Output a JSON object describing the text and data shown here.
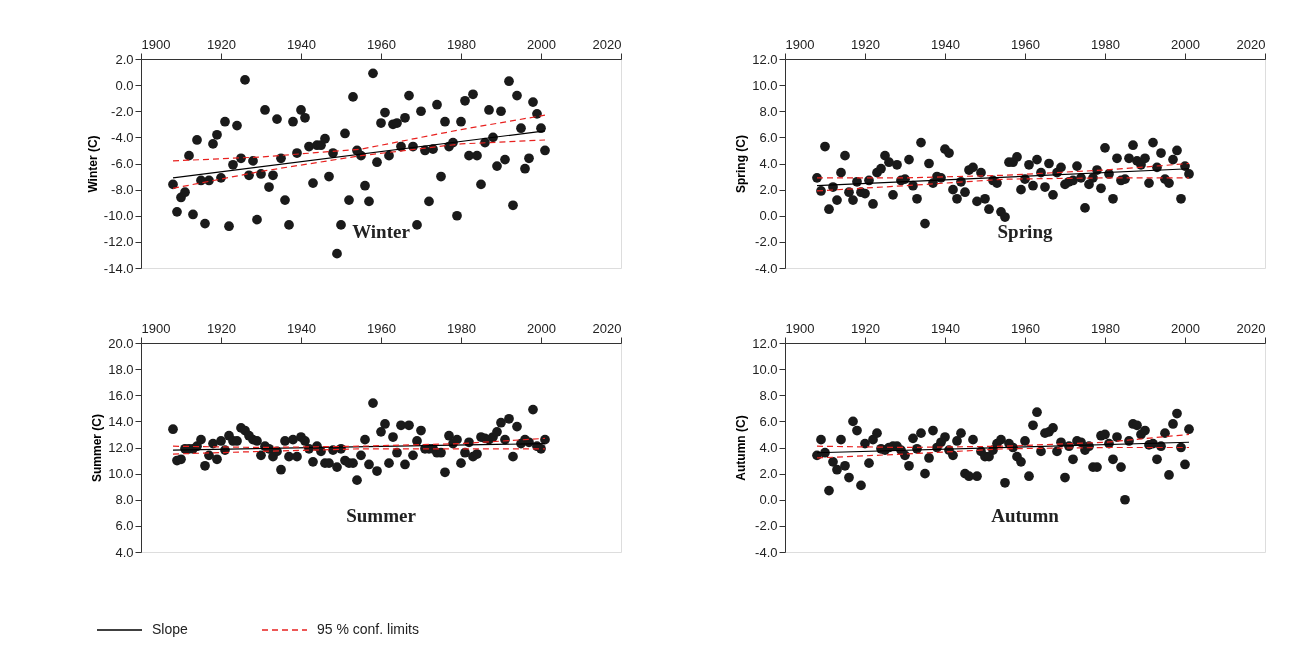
{
  "chart_data": [
    {
      "type": "scatter",
      "title": "Winter",
      "ylabel": "Winter (C)",
      "legend": "bottom",
      "xlim": [
        1900,
        2020
      ],
      "xticks": [
        1900,
        1920,
        1940,
        1960,
        1980,
        2000,
        2020
      ],
      "ylim": [
        -14,
        2
      ],
      "yticks": [
        {
          "value": -14,
          "label": "-14.0"
        },
        {
          "value": -12,
          "label": "-12.0"
        },
        {
          "value": -10,
          "label": "-10.0"
        },
        {
          "value": -8,
          "label": "-8.0"
        },
        {
          "value": -6,
          "label": "-6.0"
        },
        {
          "value": -4,
          "label": "-4.0"
        },
        {
          "value": -2,
          "label": "-2.0"
        },
        {
          "value": 0,
          "label": "0.0"
        },
        {
          "value": 2,
          "label": "2.0"
        }
      ],
      "x": [
        1908,
        1909,
        1910,
        1911,
        1912,
        1913,
        1914,
        1915,
        1916,
        1917,
        1918,
        1919,
        1920,
        1921,
        1922,
        1923,
        1924,
        1925,
        1926,
        1927,
        1928,
        1929,
        1930,
        1931,
        1932,
        1933,
        1934,
        1935,
        1936,
        1937,
        1938,
        1939,
        1940,
        1941,
        1942,
        1943,
        1944,
        1945,
        1946,
        1947,
        1948,
        1949,
        1950,
        1951,
        1952,
        1953,
        1954,
        1955,
        1956,
        1957,
        1958,
        1959,
        1960,
        1961,
        1962,
        1963,
        1964,
        1965,
        1966,
        1967,
        1968,
        1969,
        1970,
        1971,
        1972,
        1973,
        1974,
        1975,
        1976,
        1977,
        1978,
        1979,
        1980,
        1981,
        1982,
        1983,
        1984,
        1985,
        1986,
        1987,
        1988,
        1989,
        1990,
        1991,
        1992,
        1993,
        1994,
        1995,
        1996,
        1997,
        1998,
        1999,
        2000,
        2001
      ],
      "series": [
        {
          "type": "scatter",
          "marker": "circle",
          "color": "#1a1a1a",
          "values": [
            -7.6,
            -9.7,
            -8.6,
            -8.2,
            -5.4,
            -9.9,
            -4.2,
            -7.3,
            -10.6,
            -7.3,
            -4.5,
            -3.8,
            -7.1,
            -2.8,
            -10.8,
            -6.1,
            -3.1,
            -5.6,
            0.4,
            -6.9,
            -5.8,
            -10.3,
            -6.8,
            -1.9,
            -7.8,
            -6.9,
            -2.6,
            -5.6,
            -8.8,
            -10.7,
            -2.8,
            -5.2,
            -1.9,
            -2.5,
            -4.7,
            -7.5,
            -4.6,
            -4.6,
            -4.1,
            -7.0,
            -5.2,
            -12.9,
            -10.7,
            -3.7,
            -8.8,
            -0.9,
            -5.0,
            -5.4,
            -7.7,
            -8.9,
            0.9,
            -5.9,
            -2.9,
            -2.1,
            -5.4,
            -3.0,
            -2.9,
            -4.7,
            -2.5,
            -0.8,
            -4.7,
            -10.7,
            -2.0,
            -5.0,
            -8.9,
            -4.9,
            -1.5,
            -7.0,
            -2.8,
            -4.7,
            -4.4,
            -10.0,
            -2.8,
            -1.2,
            -5.4,
            -0.7,
            -5.4,
            -7.6,
            -4.4,
            -1.9,
            -4.0,
            -6.2,
            -2.0,
            -5.7,
            0.3,
            -9.2,
            -0.8,
            -3.3,
            -6.4,
            -5.6,
            -1.3,
            -2.2,
            -3.3,
            -5.0
          ]
        },
        {
          "type": "line",
          "name": "Slope",
          "color": "#000000",
          "line_style": "solid",
          "x": [
            1908,
            2001
          ],
          "values": [
            -7.1,
            -3.5
          ]
        },
        {
          "type": "line",
          "name": "95 % conf. limits",
          "color": "#e8211f",
          "line_style": "dashed",
          "x": [
            1908,
            1930,
            1955,
            1980,
            2001
          ],
          "values": [
            -5.8,
            -5.5,
            -4.9,
            -3.4,
            -2.3
          ]
        },
        {
          "type": "line",
          "color": "#e8211f",
          "line_style": "dashed",
          "x": [
            1908,
            1930,
            1955,
            1980,
            2001
          ],
          "values": [
            -7.9,
            -6.6,
            -5.4,
            -4.5,
            -4.2
          ]
        }
      ]
    },
    {
      "type": "scatter",
      "title": "Spring",
      "ylabel": "Spring (C)",
      "xlim": [
        1900,
        2020
      ],
      "xticks": [
        1900,
        1920,
        1940,
        1960,
        1980,
        2000,
        2020
      ],
      "ylim": [
        -4,
        12
      ],
      "yticks": [
        {
          "value": -4,
          "label": "-4.0"
        },
        {
          "value": -2,
          "label": "-2.0"
        },
        {
          "value": 0,
          "label": "0.0"
        },
        {
          "value": 2,
          "label": "2.0"
        },
        {
          "value": 4,
          "label": "4.0"
        },
        {
          "value": 6,
          "label": "6.0"
        },
        {
          "value": 8,
          "label": "8.0"
        },
        {
          "value": 10,
          "label": "10.0"
        },
        {
          "value": 12,
          "label": "12.0"
        }
      ],
      "x": [
        1908,
        1909,
        1910,
        1911,
        1912,
        1913,
        1914,
        1915,
        1916,
        1917,
        1918,
        1919,
        1920,
        1921,
        1922,
        1923,
        1924,
        1925,
        1926,
        1927,
        1928,
        1929,
        1930,
        1931,
        1932,
        1933,
        1934,
        1935,
        1936,
        1937,
        1938,
        1939,
        1940,
        1941,
        1942,
        1943,
        1944,
        1945,
        1946,
        1947,
        1948,
        1949,
        1950,
        1951,
        1952,
        1953,
        1954,
        1955,
        1956,
        1957,
        1958,
        1959,
        1960,
        1961,
        1962,
        1963,
        1964,
        1965,
        1966,
        1967,
        1968,
        1969,
        1970,
        1971,
        1972,
        1973,
        1974,
        1975,
        1976,
        1977,
        1978,
        1979,
        1980,
        1981,
        1982,
        1983,
        1984,
        1985,
        1986,
        1987,
        1988,
        1989,
        1990,
        1991,
        1992,
        1993,
        1994,
        1995,
        1996,
        1997,
        1998,
        1999,
        2000,
        2001
      ],
      "series": [
        {
          "type": "scatter",
          "marker": "circle",
          "color": "#1a1a1a",
          "values": [
            2.9,
            1.9,
            5.3,
            0.5,
            2.2,
            1.2,
            3.3,
            4.6,
            1.8,
            1.2,
            2.6,
            1.8,
            1.7,
            2.7,
            0.9,
            3.3,
            3.6,
            4.6,
            4.1,
            1.6,
            3.9,
            2.7,
            2.8,
            4.3,
            2.3,
            1.3,
            5.6,
            -0.6,
            4.0,
            2.5,
            3.0,
            2.9,
            5.1,
            4.8,
            2.0,
            1.3,
            2.6,
            1.8,
            3.5,
            3.7,
            1.1,
            3.3,
            1.3,
            0.5,
            2.7,
            2.5,
            0.3,
            -0.1,
            4.1,
            4.1,
            4.5,
            2.0,
            2.8,
            3.9,
            2.3,
            4.3,
            3.3,
            2.2,
            4.0,
            1.6,
            3.3,
            3.7,
            2.4,
            2.6,
            2.7,
            3.8,
            2.9,
            0.6,
            2.4,
            2.9,
            3.5,
            2.1,
            5.2,
            3.2,
            1.3,
            4.4,
            2.7,
            2.8,
            4.4,
            5.4,
            4.2,
            3.9,
            4.4,
            2.5,
            5.6,
            3.7,
            4.8,
            2.8,
            2.5,
            4.3,
            5.0,
            1.3,
            3.8,
            3.2
          ]
        },
        {
          "type": "line",
          "color": "#000000",
          "line_style": "solid",
          "x": [
            1908,
            2001
          ],
          "values": [
            2.3,
            3.6
          ]
        },
        {
          "type": "line",
          "color": "#e8211f",
          "line_style": "dashed",
          "x": [
            1908,
            1930,
            1955,
            1980,
            2001
          ],
          "values": [
            2.9,
            2.9,
            3.1,
            3.5,
            4.0
          ]
        },
        {
          "type": "line",
          "color": "#e8211f",
          "line_style": "dashed",
          "x": [
            1908,
            1930,
            1955,
            1980,
            2001
          ],
          "values": [
            1.9,
            2.3,
            2.8,
            2.9,
            2.9
          ]
        }
      ]
    },
    {
      "type": "scatter",
      "title": "Summer",
      "ylabel": "Summer (C)",
      "xlim": [
        1900,
        2020
      ],
      "xticks": [
        1900,
        1920,
        1940,
        1960,
        1980,
        2000,
        2020
      ],
      "ylim": [
        4,
        20
      ],
      "yticks": [
        {
          "value": 4,
          "label": "4.0"
        },
        {
          "value": 6,
          "label": "6.0"
        },
        {
          "value": 8,
          "label": "8.0"
        },
        {
          "value": 10,
          "label": "10.0"
        },
        {
          "value": 12,
          "label": "12.0"
        },
        {
          "value": 14,
          "label": "14.0"
        },
        {
          "value": 16,
          "label": "16.0"
        },
        {
          "value": 18,
          "label": "18.0"
        },
        {
          "value": 20,
          "label": "20.0"
        }
      ],
      "x": [
        1908,
        1909,
        1910,
        1911,
        1912,
        1913,
        1914,
        1915,
        1916,
        1917,
        1918,
        1919,
        1920,
        1921,
        1922,
        1923,
        1924,
        1925,
        1926,
        1927,
        1928,
        1929,
        1930,
        1931,
        1932,
        1933,
        1934,
        1935,
        1936,
        1937,
        1938,
        1939,
        1940,
        1941,
        1942,
        1943,
        1944,
        1945,
        1946,
        1947,
        1948,
        1949,
        1950,
        1951,
        1952,
        1953,
        1954,
        1955,
        1956,
        1957,
        1958,
        1959,
        1960,
        1961,
        1962,
        1963,
        1964,
        1965,
        1966,
        1967,
        1968,
        1969,
        1970,
        1971,
        1972,
        1973,
        1974,
        1975,
        1976,
        1977,
        1978,
        1979,
        1980,
        1981,
        1982,
        1983,
        1984,
        1985,
        1986,
        1987,
        1988,
        1989,
        1990,
        1991,
        1992,
        1993,
        1994,
        1995,
        1996,
        1997,
        1998,
        1999,
        2000,
        2001
      ],
      "series": [
        {
          "type": "scatter",
          "marker": "circle",
          "color": "#1a1a1a",
          "values": [
            13.4,
            11.0,
            11.1,
            11.9,
            11.9,
            11.9,
            12.1,
            12.6,
            10.6,
            11.4,
            12.3,
            11.1,
            12.5,
            11.8,
            12.9,
            12.5,
            12.5,
            13.5,
            13.3,
            12.9,
            12.6,
            12.5,
            11.4,
            12.1,
            11.9,
            11.3,
            11.7,
            10.3,
            12.5,
            11.3,
            12.6,
            11.3,
            12.8,
            12.5,
            11.9,
            10.9,
            12.1,
            11.7,
            10.8,
            10.8,
            11.8,
            10.5,
            11.9,
            11.0,
            10.8,
            10.8,
            9.5,
            11.4,
            12.6,
            10.7,
            15.4,
            10.2,
            13.2,
            13.8,
            10.8,
            12.8,
            11.6,
            13.7,
            10.7,
            13.7,
            11.4,
            12.5,
            13.3,
            11.9,
            11.9,
            11.9,
            11.6,
            11.6,
            10.1,
            12.9,
            12.3,
            12.6,
            10.8,
            11.6,
            12.4,
            11.3,
            11.5,
            12.8,
            12.7,
            12.6,
            12.8,
            13.2,
            13.9,
            12.6,
            14.2,
            11.3,
            13.6,
            12.3,
            12.6,
            12.4,
            14.9,
            12.1,
            11.9,
            12.6
          ]
        },
        {
          "type": "line",
          "color": "#000000",
          "line_style": "solid",
          "x": [
            1908,
            2001
          ],
          "values": [
            11.8,
            12.3
          ]
        },
        {
          "type": "line",
          "color": "#e8211f",
          "line_style": "dashed",
          "x": [
            1908,
            1930,
            1955,
            1980,
            2001
          ],
          "values": [
            12.1,
            12.0,
            12.1,
            12.3,
            12.7
          ]
        },
        {
          "type": "line",
          "color": "#e8211f",
          "line_style": "dashed",
          "x": [
            1908,
            1930,
            1955,
            1980,
            2001
          ],
          "values": [
            11.5,
            11.7,
            11.9,
            11.9,
            11.9
          ]
        }
      ]
    },
    {
      "type": "scatter",
      "title": "Autumn",
      "ylabel": "Autumn (C)",
      "xlim": [
        1900,
        2020
      ],
      "xticks": [
        1900,
        1920,
        1940,
        1960,
        1980,
        2000,
        2020
      ],
      "ylim": [
        -4,
        12
      ],
      "yticks": [
        {
          "value": -4,
          "label": "-4.0"
        },
        {
          "value": -2,
          "label": "-2.0"
        },
        {
          "value": 0,
          "label": "0.0"
        },
        {
          "value": 2,
          "label": "2.0"
        },
        {
          "value": 4,
          "label": "4.0"
        },
        {
          "value": 6,
          "label": "6.0"
        },
        {
          "value": 8,
          "label": "8.0"
        },
        {
          "value": 10,
          "label": "10.0"
        },
        {
          "value": 12,
          "label": "12.0"
        }
      ],
      "x": [
        1908,
        1909,
        1910,
        1911,
        1912,
        1913,
        1914,
        1915,
        1916,
        1917,
        1918,
        1919,
        1920,
        1921,
        1922,
        1923,
        1924,
        1925,
        1926,
        1927,
        1928,
        1929,
        1930,
        1931,
        1932,
        1933,
        1934,
        1935,
        1936,
        1937,
        1938,
        1939,
        1940,
        1941,
        1942,
        1943,
        1944,
        1945,
        1946,
        1947,
        1948,
        1949,
        1950,
        1951,
        1952,
        1953,
        1954,
        1955,
        1956,
        1957,
        1958,
        1959,
        1960,
        1961,
        1962,
        1963,
        1964,
        1965,
        1966,
        1967,
        1968,
        1969,
        1970,
        1971,
        1972,
        1973,
        1974,
        1975,
        1976,
        1977,
        1978,
        1979,
        1980,
        1981,
        1982,
        1983,
        1984,
        1985,
        1986,
        1987,
        1988,
        1989,
        1990,
        1991,
        1992,
        1993,
        1994,
        1995,
        1996,
        1997,
        1998,
        1999,
        2000,
        2001
      ],
      "series": [
        {
          "type": "scatter",
          "marker": "circle",
          "color": "#1a1a1a",
          "values": [
            3.4,
            4.6,
            3.6,
            0.7,
            2.9,
            2.3,
            4.6,
            2.6,
            1.7,
            6.0,
            5.3,
            1.1,
            4.3,
            2.8,
            4.6,
            5.1,
            3.9,
            3.8,
            4.0,
            4.1,
            4.1,
            3.8,
            3.4,
            2.6,
            4.7,
            3.9,
            5.1,
            2.0,
            3.2,
            5.3,
            4.0,
            4.4,
            4.8,
            3.8,
            3.4,
            4.5,
            5.1,
            2.0,
            1.8,
            4.6,
            1.8,
            3.7,
            3.3,
            3.3,
            3.8,
            4.3,
            4.6,
            1.3,
            4.3,
            4.0,
            3.3,
            2.9,
            4.5,
            1.8,
            5.7,
            6.7,
            3.7,
            5.1,
            5.2,
            5.5,
            3.7,
            4.4,
            1.7,
            4.1,
            3.1,
            4.5,
            4.4,
            3.8,
            4.1,
            2.5,
            2.5,
            4.9,
            5.0,
            4.3,
            3.1,
            4.8,
            2.5,
            0.0,
            4.5,
            5.8,
            5.7,
            5.0,
            5.3,
            4.2,
            4.3,
            3.1,
            4.1,
            5.1,
            1.9,
            5.8,
            6.6,
            4.0,
            2.7,
            5.4
          ]
        },
        {
          "type": "line",
          "color": "#000000",
          "line_style": "solid",
          "x": [
            1908,
            2001
          ],
          "values": [
            3.6,
            4.4
          ]
        },
        {
          "type": "line",
          "color": "#e8211f",
          "line_style": "dashed",
          "x": [
            1908,
            1930,
            1955,
            1980,
            2001
          ],
          "values": [
            4.1,
            4.0,
            4.1,
            4.4,
            5.0
          ]
        },
        {
          "type": "line",
          "color": "#e8211f",
          "line_style": "dashed",
          "x": [
            1908,
            1930,
            1955,
            1980,
            2001
          ],
          "values": [
            3.2,
            3.5,
            3.9,
            4.0,
            4.0
          ]
        }
      ]
    }
  ]
}
